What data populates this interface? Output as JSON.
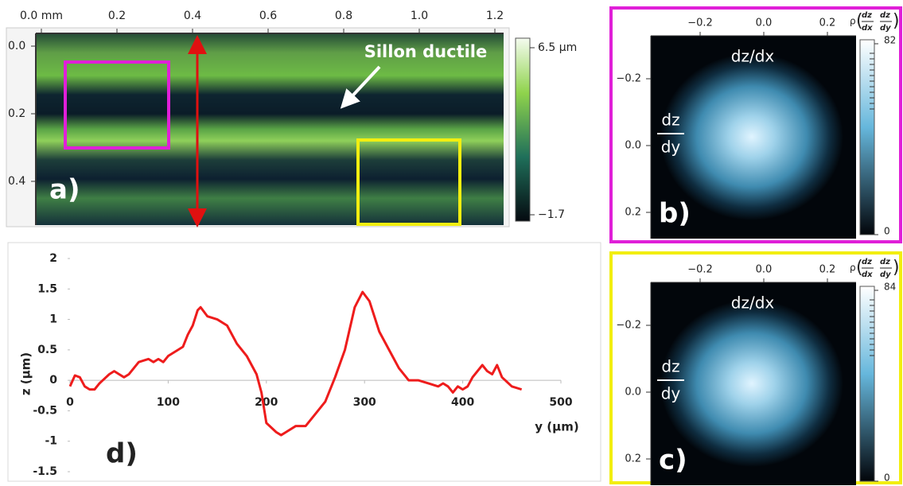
{
  "panel_a": {
    "label": "a)",
    "annotation": "Sillon ductile",
    "xticks": [
      {
        "value": 0,
        "label": "0.0 mm"
      },
      0.2,
      0.4,
      0.6,
      0.8,
      {
        "value": 1,
        "label": "1.0"
      },
      1.2
    ],
    "yticks": [
      {
        "value": 0,
        "label": "0.0"
      },
      0.2,
      0.4
    ],
    "colorbar_ticks": [
      {
        "value": 6.5,
        "label": "6.5 µm"
      },
      {
        "value": -1.7,
        "label": "−1.7"
      }
    ]
  },
  "panel_b": {
    "label": "b)",
    "x_label": "dz/dx",
    "y_label_num": "dz",
    "y_label_den": "dy",
    "xticks": [
      {
        "value": -0.2,
        "label": "−0.2"
      },
      {
        "value": 0,
        "label": "0.0"
      },
      0.2
    ],
    "yticks": [
      {
        "value": -0.2,
        "label": "−0.2"
      },
      {
        "value": 0,
        "label": "0.0"
      },
      0.2
    ],
    "colorbar_symbol": "ρ",
    "colorbar_fraction": [
      "dz",
      "dx",
      "dz",
      "dy"
    ],
    "colorbar_ticks": [
      82,
      0
    ]
  },
  "panel_c": {
    "label": "c)",
    "x_label": "dz/dx",
    "y_label_num": "dz",
    "y_label_den": "dy",
    "xticks": [
      {
        "value": -0.2,
        "label": "−0.2"
      },
      {
        "value": 0,
        "label": "0.0"
      },
      0.2
    ],
    "yticks": [
      {
        "value": -0.2,
        "label": "−0.2"
      },
      {
        "value": 0,
        "label": "0.0"
      },
      0.2
    ],
    "colorbar_symbol": "ρ",
    "colorbar_fraction": [
      "dz",
      "dx",
      "dz",
      "dy"
    ],
    "colorbar_ticks": [
      84,
      0
    ]
  },
  "chart_data": {
    "type": "line",
    "label": "d)",
    "x_label": "y (µm)",
    "y_label": "z (µm)",
    "x": [
      0,
      5,
      10,
      15,
      20,
      25,
      30,
      40,
      45,
      50,
      55,
      60,
      70,
      80,
      85,
      90,
      95,
      100,
      110,
      115,
      120,
      125,
      130,
      133,
      140,
      150,
      160,
      170,
      180,
      190,
      195,
      200,
      210,
      215,
      220,
      230,
      240,
      250,
      260,
      270,
      280,
      290,
      298,
      305,
      315,
      325,
      335,
      345,
      355,
      365,
      375,
      380,
      385,
      390,
      395,
      400,
      405,
      410,
      420,
      425,
      430,
      435,
      440,
      450,
      460
    ],
    "series": [
      {
        "color": "#ee1c1c",
        "values": [
          -0.1,
          0.08,
          0.05,
          -0.1,
          -0.15,
          -0.15,
          -0.05,
          0.1,
          0.15,
          0.1,
          0.05,
          0.1,
          0.3,
          0.35,
          0.3,
          0.35,
          0.3,
          0.4,
          0.5,
          0.55,
          0.75,
          0.9,
          1.15,
          1.2,
          1.05,
          1.0,
          0.9,
          0.6,
          0.4,
          0.1,
          -0.2,
          -0.7,
          -0.85,
          -0.9,
          -0.85,
          -0.75,
          -0.75,
          -0.55,
          -0.35,
          0.05,
          0.5,
          1.2,
          1.45,
          1.3,
          0.8,
          0.5,
          0.2,
          0.0,
          0.0,
          -0.05,
          -0.1,
          -0.05,
          -0.1,
          -0.2,
          -0.1,
          -0.15,
          -0.1,
          0.05,
          0.25,
          0.15,
          0.1,
          0.25,
          0.05,
          -0.1,
          -0.15
        ]
      }
    ],
    "xlim": [
      0,
      500
    ],
    "xticks": [
      0,
      100,
      200,
      300,
      400,
      500
    ],
    "ylim": [
      -1.5,
      2
    ],
    "yticks": [
      2,
      1.5,
      1,
      0.5,
      0,
      -0.5,
      -1,
      -1.5
    ]
  }
}
